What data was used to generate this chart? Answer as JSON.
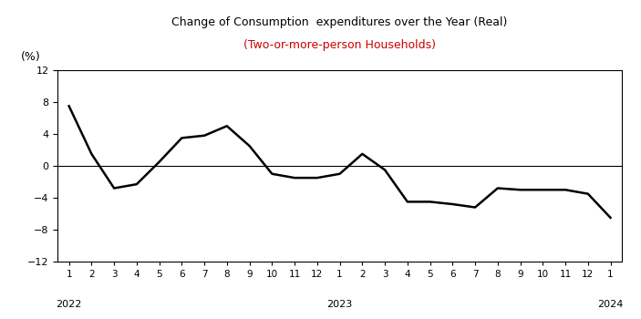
{
  "title_line1": "Change of Consumption  expenditures over the Year (Real)",
  "title_line2": "(Two-or-more-person Households)",
  "title_color1": "#000000",
  "title_color2": "#cc0000",
  "ylabel": "(%)",
  "ylim": [
    -12,
    12
  ],
  "yticks": [
    -12,
    -8,
    -4,
    0,
    4,
    8,
    12
  ],
  "line_color": "#000000",
  "line_width": 1.8,
  "values": [
    7.5,
    1.5,
    -2.8,
    -2.3,
    0.5,
    3.5,
    3.8,
    5.0,
    2.5,
    -1.0,
    -1.5,
    -1.5,
    -1.0,
    1.5,
    -0.5,
    -4.5,
    -4.5,
    -4.8,
    -5.2,
    -2.8,
    -3.0,
    -3.0,
    -3.0,
    -3.5,
    -6.5
  ],
  "x_tick_labels": [
    "1",
    "2",
    "3",
    "4",
    "5",
    "6",
    "7",
    "8",
    "9",
    "10",
    "11",
    "12",
    "1",
    "2",
    "3",
    "4",
    "5",
    "6",
    "7",
    "8",
    "9",
    "10",
    "11",
    "12",
    "1"
  ],
  "year_labels": [
    [
      "2022",
      0
    ],
    [
      "2023",
      12
    ],
    [
      "2024",
      24
    ]
  ],
  "background_color": "#ffffff",
  "zero_line_color": "#000000"
}
